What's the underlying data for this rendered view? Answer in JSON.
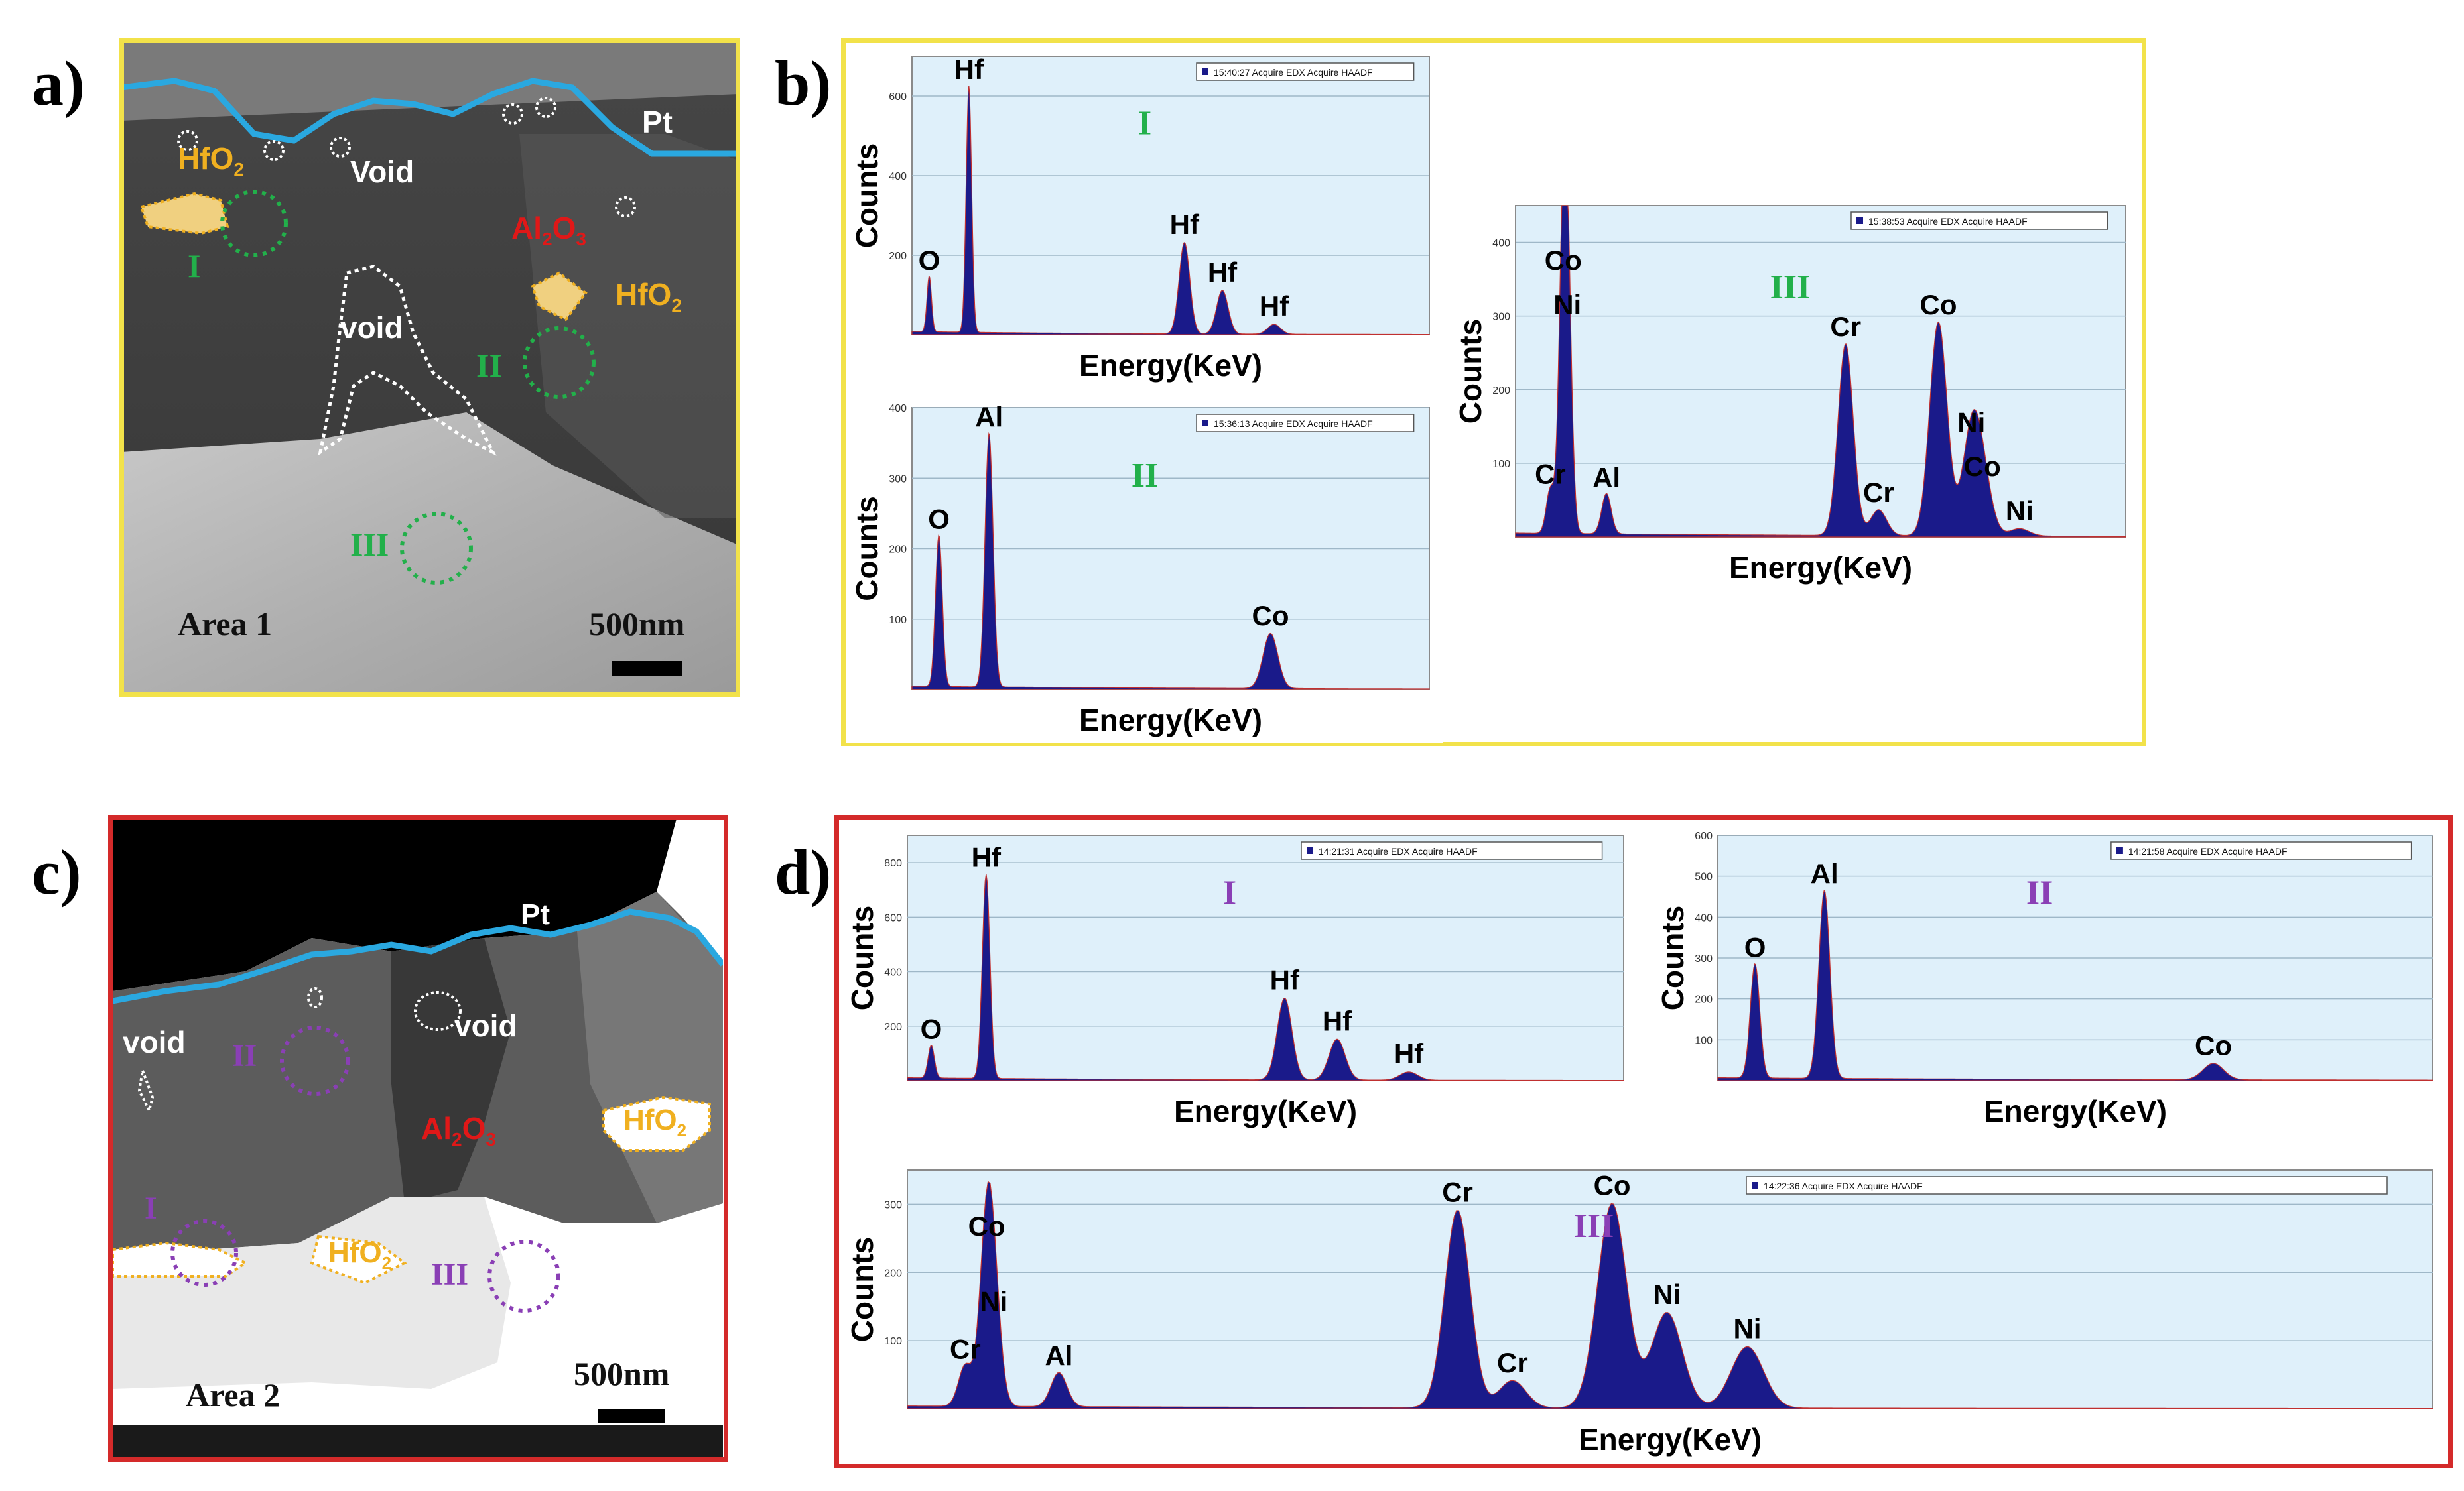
{
  "panels": {
    "a": {
      "letter": "a)",
      "area_label": "Area 1",
      "scale_bar": "500nm",
      "labels": {
        "hfo2_top": "HfO",
        "hfo2_right": "HfO",
        "void_top": "Void",
        "void_mid": "void",
        "al2o3": "Al",
        "pt": "Pt",
        "site1": "I",
        "site2": "II",
        "site3": "III",
        "sub2": "2",
        "sub2b": "2",
        "sub_al_2": "2",
        "o3": "O",
        "sub3": "3"
      }
    },
    "b": {
      "letter": "b)"
    },
    "c": {
      "letter": "c)",
      "area_label": "Area 2",
      "scale_bar": "500nm",
      "labels": {
        "pt": "Pt",
        "void_left": "void",
        "void_mid": "void",
        "al2o3": "Al",
        "sub_al_2": "2",
        "o3": "O",
        "sub3": "3",
        "hfo2_right": "HfO",
        "hfo2_bottom": "HfO",
        "sub2": "2",
        "sub2b": "2",
        "site1": "I",
        "site2": "II",
        "site3": "III"
      }
    },
    "d": {
      "letter": "d)"
    }
  },
  "colors": {
    "yellow_frame": "#f2e24a",
    "red_frame": "#d42a2a",
    "pt_line": "#2aa8e0",
    "hfo2_label": "#f0b020",
    "al2o3_label": "#e01818",
    "green_site": "#22b04a",
    "purple_site": "#8a3fb5",
    "spectrum_fill": "#1a1a8a",
    "plot_bg": "#dff0fa"
  },
  "chart_data": [
    {
      "type": "area",
      "id": "b-I",
      "roman": "I",
      "legend": "15:40:27 Acquire EDX Acquire HAADF",
      "xlabel": "Energy(KeV)",
      "ylabel": "Counts",
      "xlim": [
        0,
        15
      ],
      "ylim": [
        0,
        700
      ],
      "yticks": [
        "200",
        "400",
        "600"
      ],
      "peaks": [
        {
          "x": 0.5,
          "y": 140,
          "label": "O"
        },
        {
          "x": 1.65,
          "y": 620,
          "label": "Hf"
        },
        {
          "x": 7.9,
          "y": 230,
          "label": "Hf"
        },
        {
          "x": 9.0,
          "y": 110,
          "label": "Hf"
        },
        {
          "x": 10.5,
          "y": 25,
          "label": "Hf"
        }
      ]
    },
    {
      "type": "area",
      "id": "b-II",
      "roman": "II",
      "legend": "15:36:13 Acquire EDX Acquire HAADF",
      "xlabel": "Energy(KeV)",
      "ylabel": "Counts",
      "xlim": [
        0,
        10
      ],
      "ylim": [
        0,
        400
      ],
      "yticks": [
        "100",
        "200",
        "300",
        "400"
      ],
      "peaks": [
        {
          "x": 0.52,
          "y": 215,
          "label": "O"
        },
        {
          "x": 1.49,
          "y": 360,
          "label": "Al"
        },
        {
          "x": 6.93,
          "y": 78,
          "label": "Co"
        }
      ]
    },
    {
      "type": "area",
      "id": "b-III",
      "roman": "III",
      "legend": "15:38:53 Acquire EDX Acquire HAADF",
      "xlabel": "Energy(KeV)",
      "ylabel": "Counts",
      "xlim": [
        0,
        10
      ],
      "ylim": [
        0,
        450
      ],
      "yticks": [
        "100",
        "200",
        "300",
        "400"
      ],
      "peaks": [
        {
          "x": 0.57,
          "y": 60,
          "label": "Cr"
        },
        {
          "x": 0.78,
          "y": 350,
          "label": "Co"
        },
        {
          "x": 0.85,
          "y": 290,
          "label": "Ni"
        },
        {
          "x": 1.49,
          "y": 55,
          "label": "Al"
        },
        {
          "x": 5.41,
          "y": 260,
          "label": "Cr"
        },
        {
          "x": 5.95,
          "y": 35,
          "label": "Cr"
        },
        {
          "x": 6.93,
          "y": 290,
          "label": "Co"
        },
        {
          "x": 7.47,
          "y": 130,
          "label": "Ni"
        },
        {
          "x": 7.65,
          "y": 70,
          "label": "Co"
        },
        {
          "x": 8.26,
          "y": 10,
          "label": "Ni"
        }
      ]
    },
    {
      "type": "area",
      "id": "d-I",
      "roman": "I",
      "legend": "14:21:31 Acquire EDX Acquire HAADF",
      "xlabel": "Energy(KeV)",
      "ylabel": "Counts",
      "xlim": [
        0,
        15
      ],
      "ylim": [
        0,
        900
      ],
      "yticks": [
        "200",
        "400",
        "600",
        "800"
      ],
      "peaks": [
        {
          "x": 0.5,
          "y": 120,
          "label": "O"
        },
        {
          "x": 1.65,
          "y": 750,
          "label": "Hf"
        },
        {
          "x": 7.9,
          "y": 300,
          "label": "Hf"
        },
        {
          "x": 9.0,
          "y": 150,
          "label": "Hf"
        },
        {
          "x": 10.5,
          "y": 30,
          "label": "Hf"
        }
      ]
    },
    {
      "type": "area",
      "id": "d-II",
      "roman": "II",
      "legend": "14:21:58 Acquire EDX Acquire HAADF",
      "xlabel": "Energy(KeV)",
      "ylabel": "Counts",
      "xlim": [
        0,
        10
      ],
      "ylim": [
        0,
        600
      ],
      "yticks": [
        "100",
        "200",
        "300",
        "400",
        "500",
        "600"
      ],
      "peaks": [
        {
          "x": 0.52,
          "y": 280,
          "label": "O"
        },
        {
          "x": 1.49,
          "y": 460,
          "label": "Al"
        },
        {
          "x": 6.93,
          "y": 40,
          "label": "Co"
        }
      ]
    },
    {
      "type": "area",
      "id": "d-III",
      "roman": "III",
      "legend": "14:22:36 Acquire EDX Acquire HAADF",
      "xlabel": "Energy(KeV)",
      "ylabel": "Counts",
      "xlim": [
        0,
        15
      ],
      "ylim": [
        0,
        350
      ],
      "yticks": [
        "100",
        "200",
        "300"
      ],
      "peaks": [
        {
          "x": 0.57,
          "y": 60,
          "label": "Cr"
        },
        {
          "x": 0.78,
          "y": 240,
          "label": "Co"
        },
        {
          "x": 0.85,
          "y": 130,
          "label": "Ni"
        },
        {
          "x": 1.49,
          "y": 50,
          "label": "Al"
        },
        {
          "x": 5.41,
          "y": 290,
          "label": "Cr"
        },
        {
          "x": 5.95,
          "y": 40,
          "label": "Cr"
        },
        {
          "x": 6.93,
          "y": 300,
          "label": "Co"
        },
        {
          "x": 7.47,
          "y": 140,
          "label": "Ni"
        },
        {
          "x": 8.26,
          "y": 90,
          "label": "Ni"
        }
      ]
    }
  ]
}
